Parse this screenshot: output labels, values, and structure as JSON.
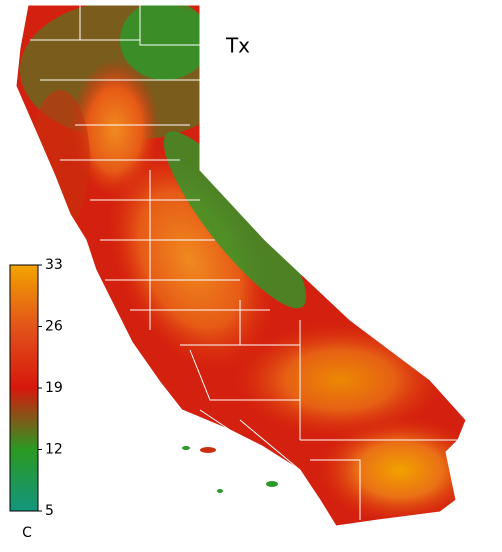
{
  "map": {
    "title": "Tx",
    "colorbar": {
      "unit": "C",
      "lim": [
        5,
        33
      ],
      "ticks": [
        33,
        26,
        19,
        12,
        5
      ]
    }
  }
}
